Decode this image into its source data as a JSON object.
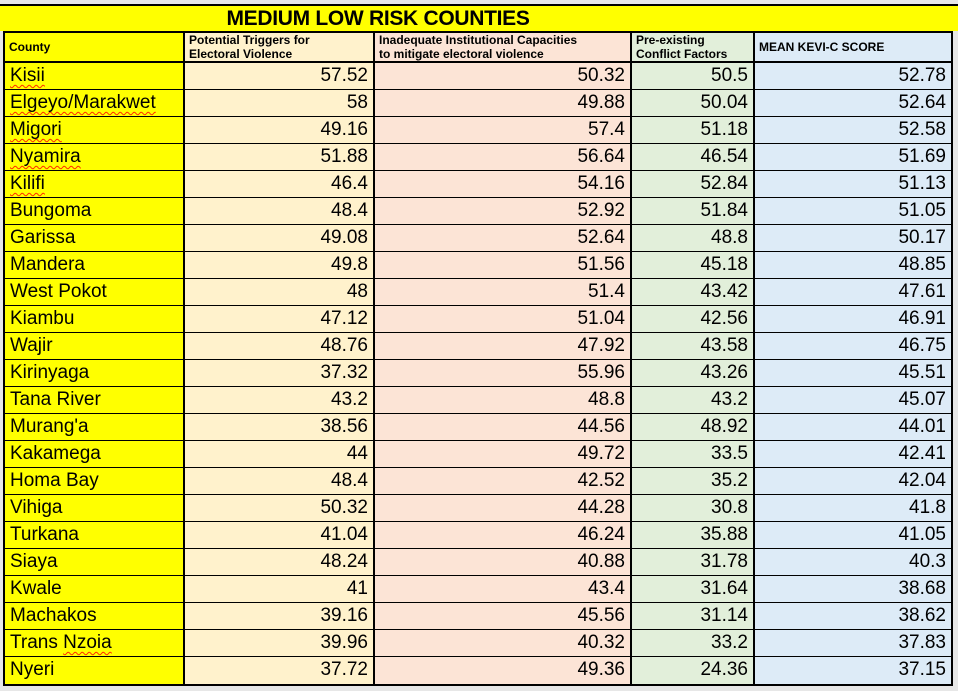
{
  "title": "MEDIUM LOW RISK COUNTIES",
  "colors": {
    "title_bg": "#FFFF00",
    "county_col_bg": "#FFFF00",
    "triggers_col_bg": "#FFF2CC",
    "capacities_col_bg": "#FCE4D6",
    "conflict_col_bg": "#E2EFDA",
    "mean_col_bg": "#DDEBF7",
    "border": "#000000",
    "page_bg": "#E7E7E7",
    "spellcheck_underline": "#FF2A00"
  },
  "chart_data": {
    "type": "table",
    "title": "MEDIUM LOW RISK COUNTIES",
    "columns": [
      "County",
      "Potential Triggers for\nElectoral Violence",
      "Inadequate Institutional Capacities\nto mitigate electoral violence",
      "Pre-existing\nConflict Factors",
      "MEAN KEVI-C SCORE"
    ],
    "rows": [
      {
        "county": "Kisii",
        "spellcheck": "Kisii",
        "triggers": "57.52",
        "capacities": "50.32",
        "conflict": "50.5",
        "mean": "52.78"
      },
      {
        "county": "Elgeyo/Marakwet",
        "spellcheck": "Elgeyo/Marakwet",
        "triggers": "58",
        "capacities": "49.88",
        "conflict": "50.04",
        "mean": "52.64"
      },
      {
        "county": "Migori",
        "spellcheck": "Migori",
        "triggers": "49.16",
        "capacities": "57.4",
        "conflict": "51.18",
        "mean": "52.58"
      },
      {
        "county": "Nyamira",
        "spellcheck": "Nyamira",
        "triggers": "51.88",
        "capacities": "56.64",
        "conflict": "46.54",
        "mean": "51.69"
      },
      {
        "county": "Kilifi",
        "spellcheck": "Kilifi",
        "triggers": "46.4",
        "capacities": "54.16",
        "conflict": "52.84",
        "mean": "51.13"
      },
      {
        "county": "Bungoma",
        "spellcheck": null,
        "triggers": "48.4",
        "capacities": "52.92",
        "conflict": "51.84",
        "mean": "51.05"
      },
      {
        "county": "Garissa",
        "spellcheck": null,
        "triggers": "49.08",
        "capacities": "52.64",
        "conflict": "48.8",
        "mean": "50.17"
      },
      {
        "county": "Mandera",
        "spellcheck": null,
        "triggers": "49.8",
        "capacities": "51.56",
        "conflict": "45.18",
        "mean": "48.85"
      },
      {
        "county": "West Pokot",
        "spellcheck": null,
        "triggers": "48",
        "capacities": "51.4",
        "conflict": "43.42",
        "mean": "47.61"
      },
      {
        "county": "Kiambu",
        "spellcheck": null,
        "triggers": "47.12",
        "capacities": "51.04",
        "conflict": "42.56",
        "mean": "46.91"
      },
      {
        "county": "Wajir",
        "spellcheck": null,
        "triggers": "48.76",
        "capacities": "47.92",
        "conflict": "43.58",
        "mean": "46.75"
      },
      {
        "county": "Kirinyaga",
        "spellcheck": null,
        "triggers": "37.32",
        "capacities": "55.96",
        "conflict": "43.26",
        "mean": "45.51"
      },
      {
        "county": "Tana River",
        "spellcheck": null,
        "triggers": "43.2",
        "capacities": "48.8",
        "conflict": "43.2",
        "mean": "45.07"
      },
      {
        "county": "Murang'a",
        "spellcheck": null,
        "triggers": "38.56",
        "capacities": "44.56",
        "conflict": "48.92",
        "mean": "44.01"
      },
      {
        "county": "Kakamega",
        "spellcheck": null,
        "triggers": "44",
        "capacities": "49.72",
        "conflict": "33.5",
        "mean": "42.41"
      },
      {
        "county": "Homa Bay",
        "spellcheck": null,
        "triggers": "48.4",
        "capacities": "42.52",
        "conflict": "35.2",
        "mean": "42.04"
      },
      {
        "county": "Vihiga",
        "spellcheck": null,
        "triggers": "50.32",
        "capacities": "44.28",
        "conflict": "30.8",
        "mean": "41.8"
      },
      {
        "county": "Turkana",
        "spellcheck": null,
        "triggers": "41.04",
        "capacities": "46.24",
        "conflict": "35.88",
        "mean": "41.05"
      },
      {
        "county": "Siaya",
        "spellcheck": null,
        "triggers": "48.24",
        "capacities": "40.88",
        "conflict": "31.78",
        "mean": "40.3"
      },
      {
        "county": "Kwale",
        "spellcheck": null,
        "triggers": "41",
        "capacities": "43.4",
        "conflict": "31.64",
        "mean": "38.68"
      },
      {
        "county": "Machakos",
        "spellcheck": null,
        "triggers": "39.16",
        "capacities": "45.56",
        "conflict": "31.14",
        "mean": "38.62"
      },
      {
        "county": "Trans Nzoia",
        "spellcheck": "Nzoia",
        "triggers": "39.96",
        "capacities": "40.32",
        "conflict": "33.2",
        "mean": "37.83"
      },
      {
        "county": "Nyeri",
        "spellcheck": null,
        "triggers": "37.72",
        "capacities": "49.36",
        "conflict": "24.36",
        "mean": "37.15"
      }
    ]
  }
}
